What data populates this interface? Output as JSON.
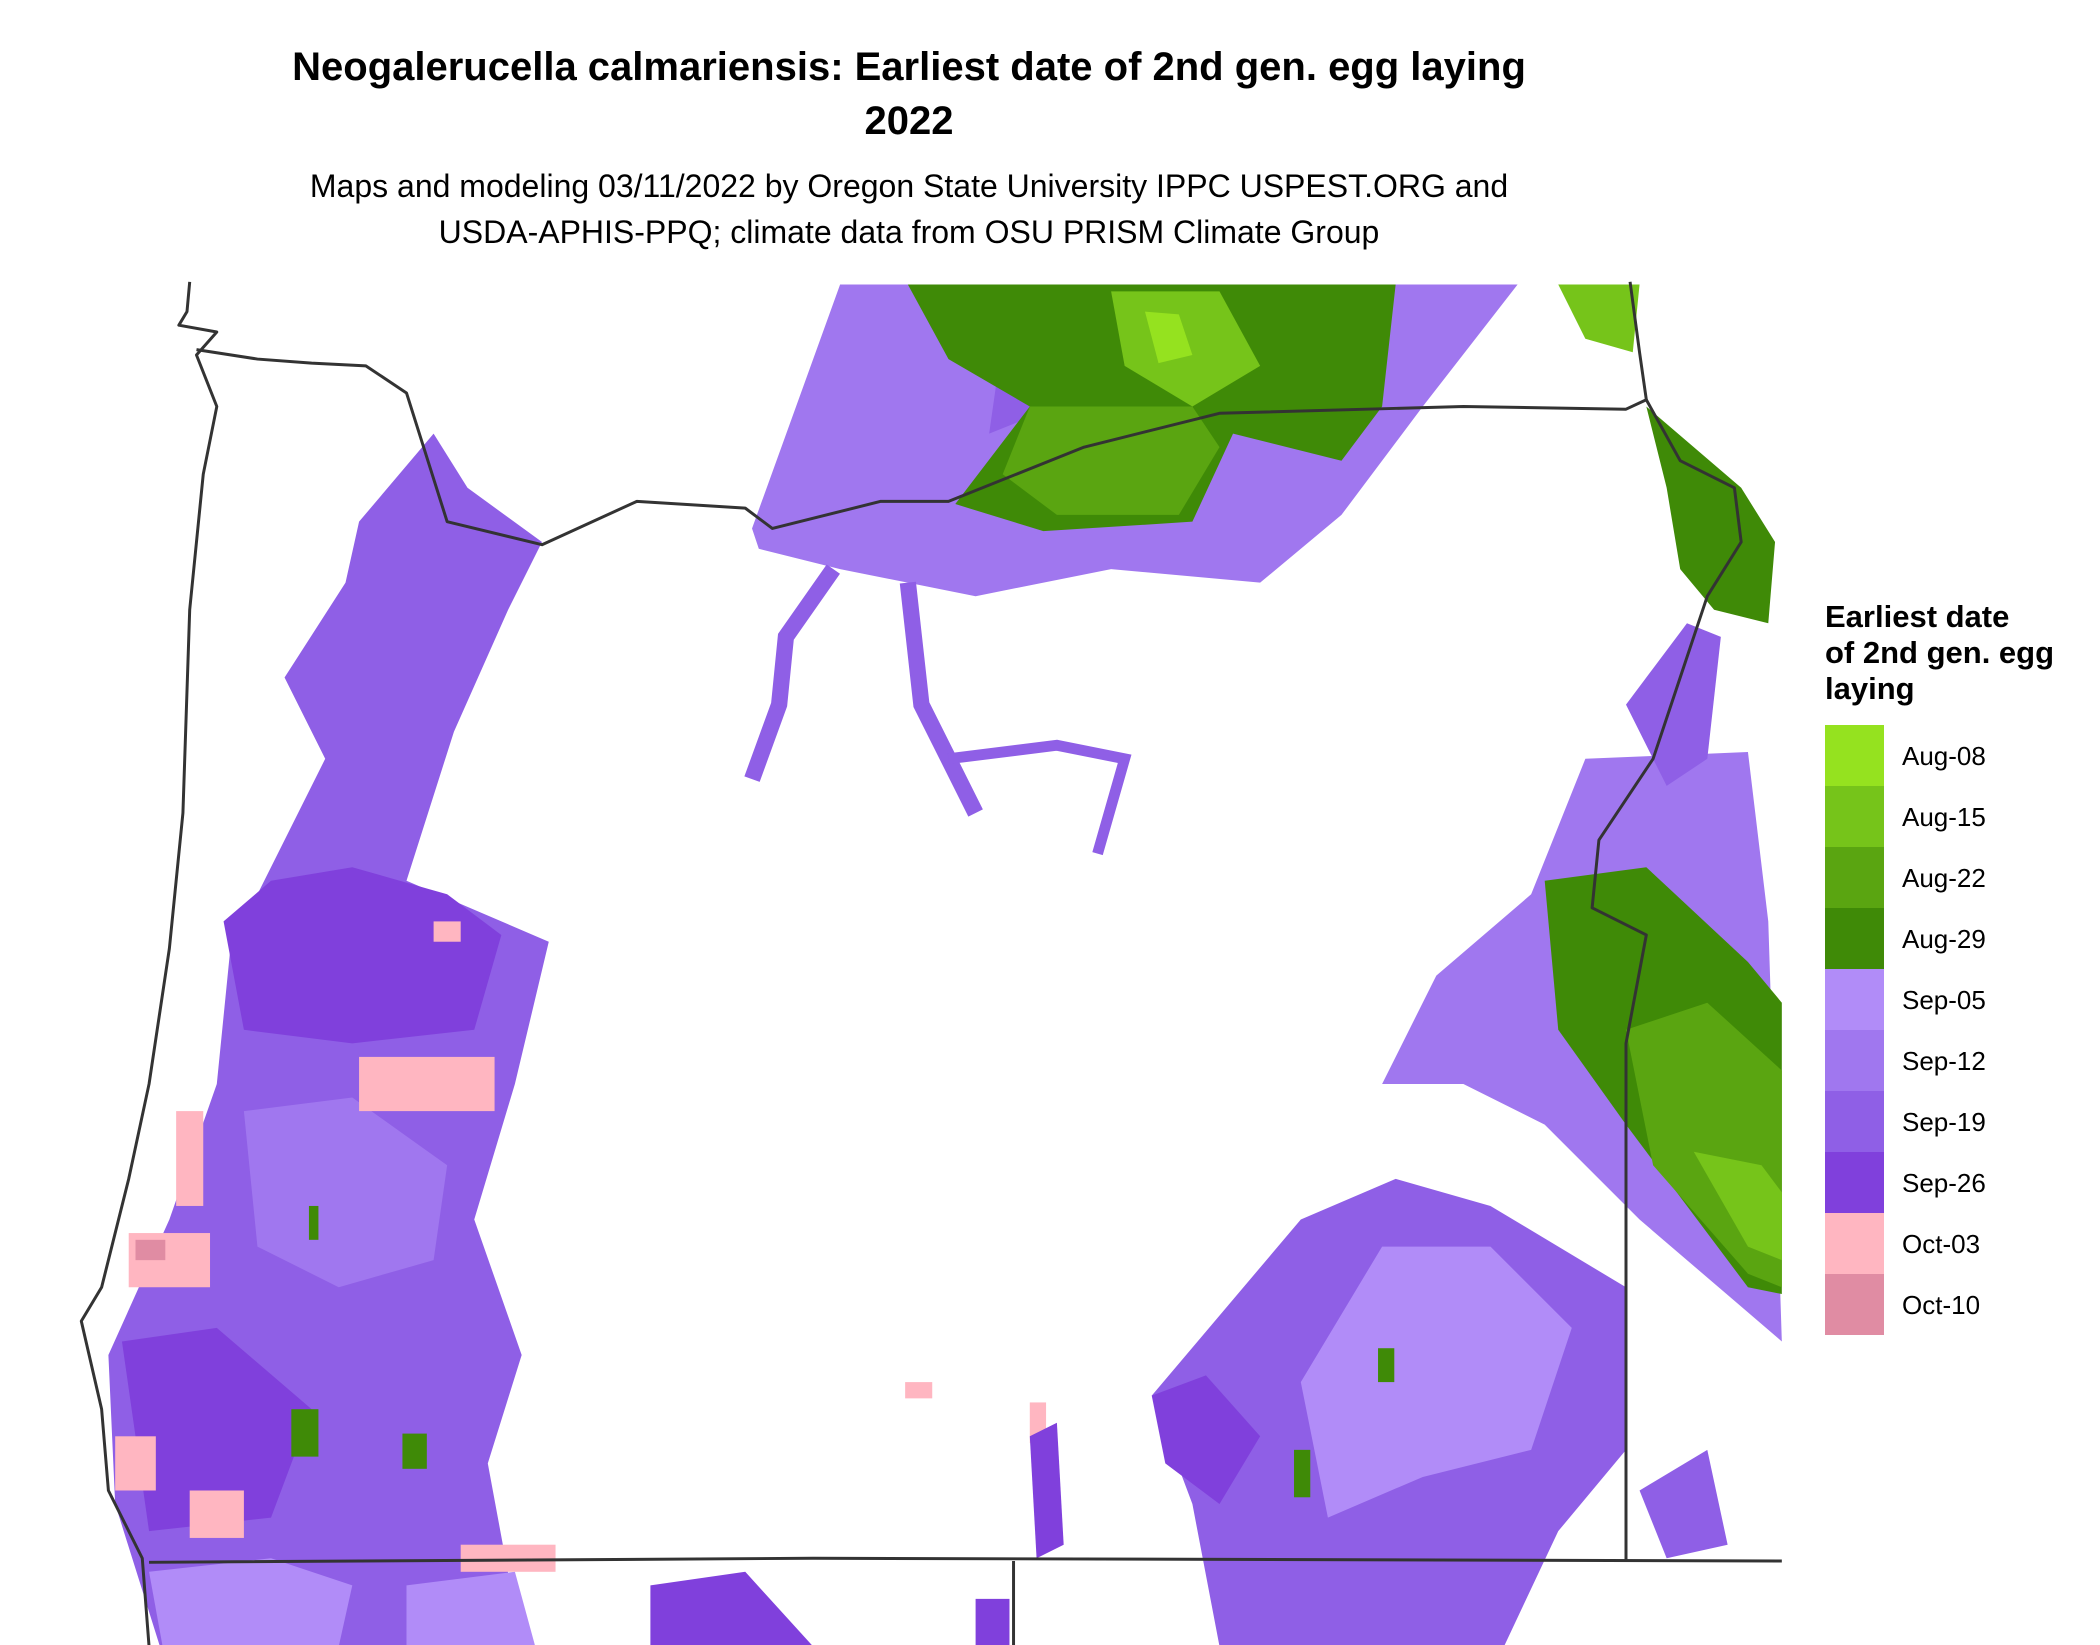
{
  "title": [
    "Neogalerucella calmariensis: Earliest date of 2nd gen. egg laying",
    "2022"
  ],
  "subtitle": [
    "Maps and modeling 03/11/2022 by Oregon State University IPPC USPEST.ORG and",
    "USDA-APHIS-PPQ; climate data from OSU PRISM Climate Group"
  ],
  "legend": {
    "title": [
      "Earliest date",
      "of 2nd gen. egg",
      "laying"
    ],
    "items": [
      {
        "label": "Aug-08",
        "color": "#95e21f"
      },
      {
        "label": "Aug-15",
        "color": "#76c41a"
      },
      {
        "label": "Aug-22",
        "color": "#5aa511"
      },
      {
        "label": "Aug-29",
        "color": "#3f8a07"
      },
      {
        "label": "Sep-05",
        "color": "#b18cf8"
      },
      {
        "label": "Sep-12",
        "color": "#a077ef"
      },
      {
        "label": "Sep-19",
        "color": "#8f5fe6"
      },
      {
        "label": "Sep-26",
        "color": "#8040dc"
      },
      {
        "label": "Oct-03",
        "color": "#ffb6c1"
      },
      {
        "label": "Oct-10",
        "color": "#e08ca3"
      }
    ]
  }
}
